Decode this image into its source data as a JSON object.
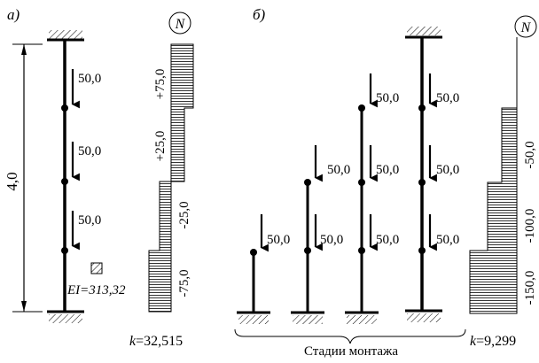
{
  "panel_a": {
    "label": "а)",
    "dimension": "4,0",
    "loads": [
      "50,0",
      "50,0",
      "50,0"
    ],
    "stiffness": "EI=313,32",
    "axial_badge": "N",
    "axial_values": [
      "+75,0",
      "+25,0",
      "-25,0",
      "-75,0"
    ],
    "axial_profile": [
      75.0,
      25.0,
      -25.0,
      -75.0
    ],
    "k": "k=32,515"
  },
  "panel_b": {
    "label": "б)",
    "stage1_loads": [
      "50,0"
    ],
    "stage2_loads": [
      "50,0",
      "50,0"
    ],
    "stage3_loads": [
      "50,0",
      "50,0",
      "50,0"
    ],
    "stage4_loads": [
      "50,0",
      "50,0",
      "50,0"
    ],
    "axial_badge": "N",
    "axial_values": [
      "-50,0",
      "-100,0",
      "-150,0"
    ],
    "axial_profile": [
      -50.0,
      -100.0,
      -150.0
    ],
    "stages_caption": "Стадии монтажа",
    "k": "k=9,299"
  }
}
